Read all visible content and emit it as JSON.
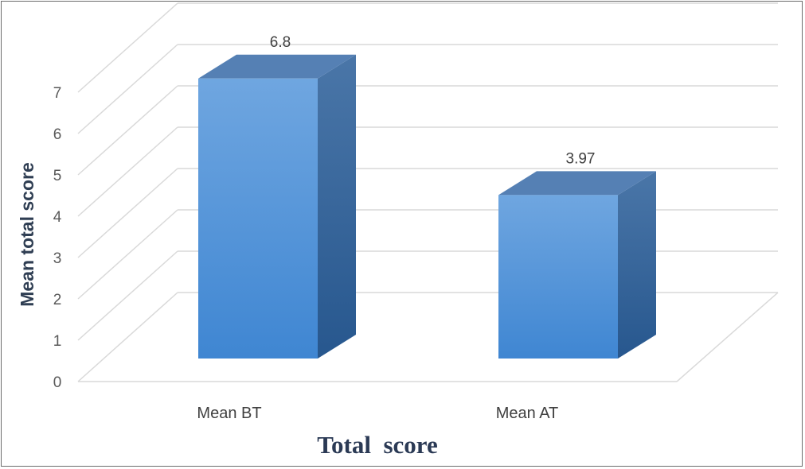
{
  "chart_data": {
    "type": "bar",
    "style": "3d-column",
    "categories": [
      "Mean BT",
      "Mean AT"
    ],
    "values": [
      6.8,
      3.97
    ],
    "value_labels": [
      "6.8",
      "3.97"
    ],
    "xlabel": "Total  score",
    "ylabel": "Mean total score",
    "ylim": [
      0,
      7
    ],
    "yticks": [
      "0",
      "1",
      "2",
      "3",
      "4",
      "5",
      "6",
      "7"
    ],
    "grid": true,
    "legend": "none",
    "colors": {
      "bar_front_top": "#6fa6e0",
      "bar_front_bottom": "#3f86d2",
      "bar_side_top": "#4a76a8",
      "bar_side_bottom": "#27578e",
      "bar_top": "#5580b4",
      "grid": "#d9d9d9"
    }
  }
}
